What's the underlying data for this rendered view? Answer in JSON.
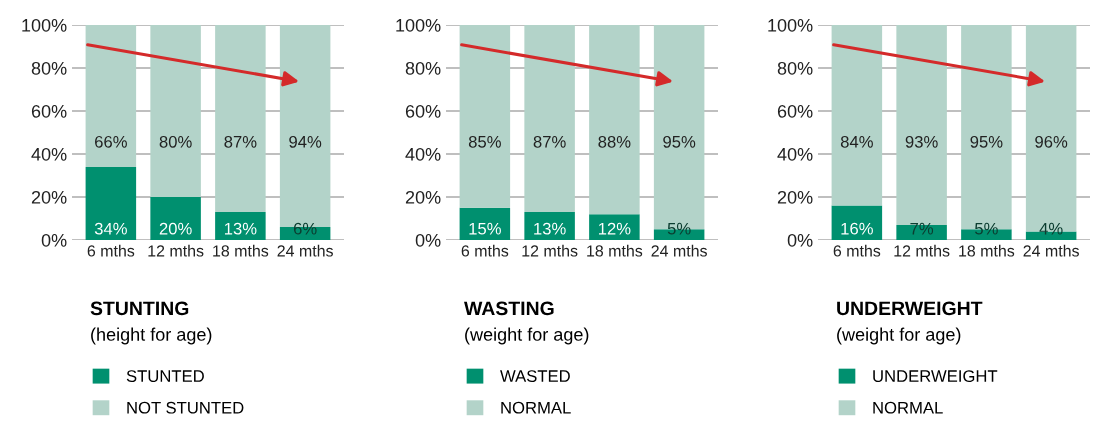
{
  "chart_data": [
    {
      "type": "bar",
      "stacked": true,
      "title": "STUNTING",
      "subtitle": "(height for age)",
      "categories": [
        "6 mths",
        "12 mths",
        "18 mths",
        "24 mths"
      ],
      "series": [
        {
          "name": "STUNTED",
          "color": "#00906f",
          "values": [
            34,
            20,
            13,
            6
          ]
        },
        {
          "name": "NOT STUNTED",
          "color": "#b3d3c9",
          "values": [
            66,
            80,
            87,
            94
          ]
        }
      ],
      "ylim": [
        0,
        100
      ],
      "yticks": [
        {
          "value": 0,
          "label": "0%"
        },
        {
          "value": 20,
          "label": "20%"
        },
        {
          "value": 40,
          "label": "40%"
        },
        {
          "value": 60,
          "label": "60%"
        },
        {
          "value": 80,
          "label": "80%"
        },
        {
          "value": 100,
          "label": "100%"
        }
      ],
      "value_labels": [
        [
          "34%",
          "20%",
          "13%",
          "6%"
        ],
        [
          "66%",
          "80%",
          "87%",
          "94%"
        ]
      ],
      "grid": "y",
      "legend": "bottom"
    },
    {
      "type": "bar",
      "stacked": true,
      "title": "WASTING",
      "subtitle": "(weight for age)",
      "categories": [
        "6 mths",
        "12 mths",
        "18 mths",
        "24 mths"
      ],
      "series": [
        {
          "name": "WASTED",
          "color": "#00906f",
          "values": [
            15,
            13,
            12,
            5
          ]
        },
        {
          "name": "NORMAL",
          "color": "#b3d3c9",
          "values": [
            85,
            87,
            88,
            95
          ]
        }
      ],
      "ylim": [
        0,
        100
      ],
      "yticks": [
        {
          "value": 0,
          "label": "0%"
        },
        {
          "value": 20,
          "label": "20%"
        },
        {
          "value": 40,
          "label": "40%"
        },
        {
          "value": 60,
          "label": "60%"
        },
        {
          "value": 80,
          "label": "80%"
        },
        {
          "value": 100,
          "label": "100%"
        }
      ],
      "value_labels": [
        [
          "15%",
          "13%",
          "12%",
          "5%"
        ],
        [
          "85%",
          "87%",
          "88%",
          "95%"
        ]
      ],
      "grid": "y",
      "legend": "bottom"
    },
    {
      "type": "bar",
      "stacked": true,
      "title": "UNDERWEIGHT",
      "subtitle": "(weight for age)",
      "categories": [
        "6 mths",
        "12 mths",
        "18 mths",
        "24 mths"
      ],
      "series": [
        {
          "name": "UNDERWEIGHT",
          "color": "#00906f",
          "values": [
            16,
            7,
            5,
            4
          ]
        },
        {
          "name": "NORMAL",
          "color": "#b3d3c9",
          "values": [
            84,
            93,
            95,
            96
          ]
        }
      ],
      "ylim": [
        0,
        100
      ],
      "yticks": [
        {
          "value": 0,
          "label": "0%"
        },
        {
          "value": 20,
          "label": "20%"
        },
        {
          "value": 40,
          "label": "40%"
        },
        {
          "value": 60,
          "label": "60%"
        },
        {
          "value": 80,
          "label": "80%"
        },
        {
          "value": 100,
          "label": "100%"
        }
      ],
      "value_labels": [
        [
          "16%",
          "7%",
          "5%",
          "4%"
        ],
        [
          "84%",
          "93%",
          "95%",
          "96%"
        ]
      ],
      "grid": "y",
      "legend": "bottom"
    }
  ]
}
